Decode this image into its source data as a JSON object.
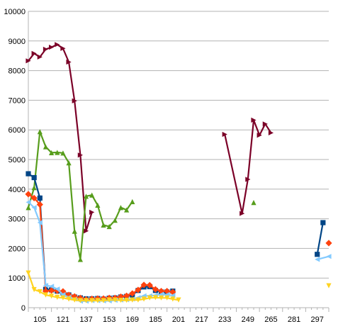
{
  "chart_data": {
    "type": "line",
    "title": "",
    "xlabel": "",
    "ylabel": "",
    "ylim": [
      0,
      10000
    ],
    "y_ticks": [
      "0",
      "1000",
      "2000",
      "3000",
      "4000",
      "5000",
      "6000",
      "7000",
      "8000",
      "9000",
      "10000"
    ],
    "x_tick_labels": [
      "105",
      "121",
      "137",
      "153",
      "169",
      "185",
      "201",
      "217",
      "233",
      "249",
      "265",
      "281",
      "297"
    ],
    "x_start": 97,
    "x_end": 305,
    "grid": "horizontal",
    "legend": "none",
    "series": [
      {
        "color": "#7b0027",
        "marker": "triangle-right",
        "points": [
          [
            97,
            8330
          ],
          [
            101,
            8580
          ],
          [
            105,
            8460
          ],
          [
            109,
            8720
          ],
          [
            113,
            8790
          ],
          [
            117,
            8880
          ],
          [
            121,
            8750
          ],
          [
            125,
            8290
          ],
          [
            129,
            6980
          ],
          [
            133,
            5150
          ],
          [
            137,
            2590
          ],
          [
            141,
            3220
          ],
          [
            null,
            null
          ],
          [
            233,
            5850
          ],
          [
            245,
            3180
          ],
          [
            249,
            4330
          ],
          [
            253,
            6330
          ],
          [
            257,
            5820
          ],
          [
            261,
            6200
          ],
          [
            265,
            5900
          ]
        ]
      },
      {
        "color": "#579d1c",
        "marker": "triangle-up",
        "points": [
          [
            97,
            3380
          ],
          [
            101,
            4050
          ],
          [
            105,
            5940
          ],
          [
            109,
            5430
          ],
          [
            113,
            5230
          ],
          [
            117,
            5240
          ],
          [
            121,
            5220
          ],
          [
            125,
            4890
          ],
          [
            129,
            2580
          ],
          [
            133,
            1630
          ],
          [
            137,
            3760
          ],
          [
            141,
            3800
          ],
          [
            145,
            3460
          ],
          [
            149,
            2790
          ],
          [
            153,
            2740
          ],
          [
            157,
            2950
          ],
          [
            161,
            3380
          ],
          [
            165,
            3300
          ],
          [
            169,
            3580
          ],
          [
            null,
            null
          ],
          [
            253,
            3550
          ]
        ]
      },
      {
        "color": "#004586",
        "marker": "square",
        "points": [
          [
            97,
            4520
          ],
          [
            101,
            4390
          ],
          [
            105,
            3700
          ],
          [
            109,
            620
          ],
          [
            113,
            600
          ],
          [
            117,
            560
          ],
          [
            121,
            500
          ],
          [
            125,
            430
          ],
          [
            129,
            360
          ],
          [
            133,
            330
          ],
          [
            137,
            300
          ],
          [
            141,
            300
          ],
          [
            145,
            310
          ],
          [
            149,
            290
          ],
          [
            153,
            320
          ],
          [
            157,
            330
          ],
          [
            161,
            360
          ],
          [
            165,
            380
          ],
          [
            169,
            430
          ],
          [
            173,
            580
          ],
          [
            177,
            700
          ],
          [
            181,
            710
          ],
          [
            185,
            580
          ],
          [
            189,
            530
          ],
          [
            193,
            530
          ],
          [
            197,
            560
          ],
          [
            null,
            null
          ],
          [
            297,
            1800
          ],
          [
            301,
            2870
          ]
        ]
      },
      {
        "color": "#ff420e",
        "marker": "diamond",
        "points": [
          [
            97,
            3830
          ],
          [
            101,
            3700
          ],
          [
            105,
            3480
          ],
          [
            109,
            560
          ],
          [
            113,
            580
          ],
          [
            117,
            570
          ],
          [
            121,
            550
          ],
          [
            125,
            430
          ],
          [
            129,
            380
          ],
          [
            133,
            330
          ],
          [
            137,
            280
          ],
          [
            141,
            300
          ],
          [
            145,
            310
          ],
          [
            149,
            310
          ],
          [
            153,
            330
          ],
          [
            157,
            330
          ],
          [
            161,
            370
          ],
          [
            165,
            400
          ],
          [
            169,
            480
          ],
          [
            173,
            600
          ],
          [
            177,
            770
          ],
          [
            181,
            760
          ],
          [
            185,
            620
          ],
          [
            189,
            560
          ],
          [
            193,
            560
          ],
          [
            197,
            530
          ],
          [
            null,
            null
          ],
          [
            305,
            2180
          ]
        ]
      },
      {
        "color": "#83caff",
        "marker": "triangle-left",
        "points": [
          [
            97,
            3560
          ],
          [
            101,
            3380
          ],
          [
            105,
            2870
          ],
          [
            109,
            750
          ],
          [
            113,
            720
          ],
          [
            117,
            630
          ],
          [
            121,
            440
          ],
          [
            125,
            350
          ],
          [
            129,
            290
          ],
          [
            133,
            220
          ],
          [
            137,
            220
          ],
          [
            141,
            240
          ],
          [
            145,
            240
          ],
          [
            149,
            230
          ],
          [
            153,
            230
          ],
          [
            157,
            250
          ],
          [
            161,
            260
          ],
          [
            165,
            270
          ],
          [
            169,
            290
          ],
          [
            173,
            340
          ],
          [
            177,
            400
          ],
          [
            181,
            400
          ],
          [
            185,
            420
          ],
          [
            189,
            450
          ],
          [
            193,
            440
          ],
          [
            197,
            410
          ],
          [
            null,
            null
          ],
          [
            297,
            1630
          ],
          [
            305,
            1730
          ]
        ]
      },
      {
        "color": "#ffd320",
        "marker": "triangle-down",
        "points": [
          [
            97,
            1170
          ],
          [
            101,
            610
          ],
          [
            105,
            540
          ],
          [
            109,
            430
          ],
          [
            113,
            390
          ],
          [
            117,
            350
          ],
          [
            121,
            330
          ],
          [
            125,
            290
          ],
          [
            129,
            260
          ],
          [
            133,
            240
          ],
          [
            137,
            240
          ],
          [
            141,
            240
          ],
          [
            145,
            240
          ],
          [
            149,
            240
          ],
          [
            153,
            260
          ],
          [
            157,
            260
          ],
          [
            161,
            250
          ],
          [
            165,
            250
          ],
          [
            169,
            260
          ],
          [
            173,
            260
          ],
          [
            177,
            290
          ],
          [
            181,
            330
          ],
          [
            185,
            340
          ],
          [
            189,
            330
          ],
          [
            193,
            330
          ],
          [
            197,
            290
          ],
          [
            201,
            260
          ],
          [
            null,
            null
          ],
          [
            305,
            740
          ]
        ]
      }
    ]
  }
}
